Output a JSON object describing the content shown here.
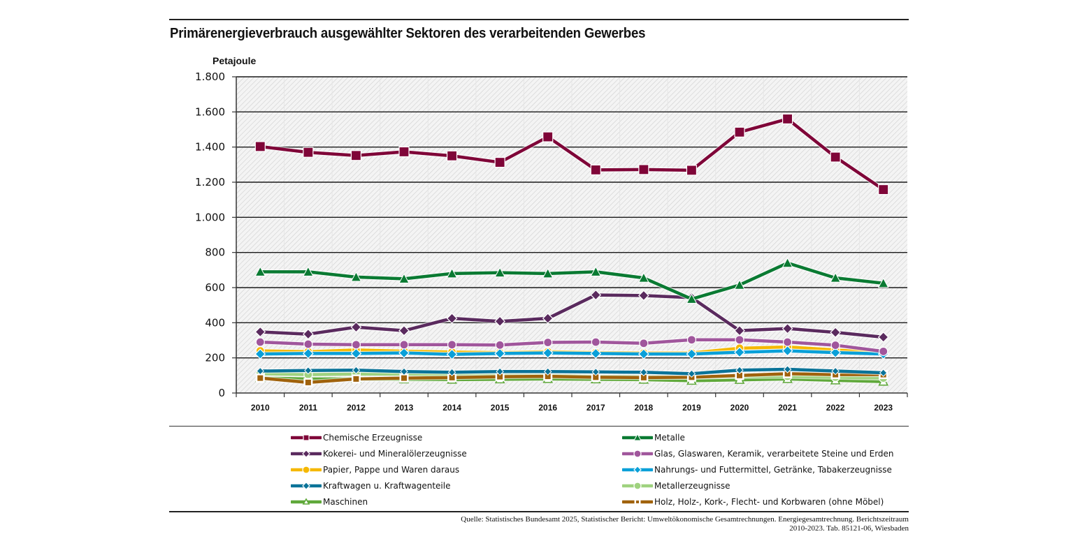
{
  "title": "Primärenergieverbrauch ausgewählter Sektoren des verarbeitenden Gewerbes",
  "source_line1": "Quelle: Statistisches Bundesamt 2025, Statistischer Bericht: Umweltökonomische Gesamtrechnungen. Energiegesamtrechnung. Berichtszeitraum",
  "source_line2": "2010-2023. Tab. 85121-06, Wiesbaden",
  "chart_data": {
    "type": "line",
    "title": "Primärenergieverbrauch ausgewählter Sektoren des verarbeitenden Gewerbes",
    "ylabel": "Petajoule",
    "xlabel": "",
    "ylim": [
      0,
      1800
    ],
    "yticks": [
      0,
      200,
      400,
      600,
      800,
      1000,
      1200,
      1400,
      1600,
      1800
    ],
    "ytick_labels": [
      "0",
      "200",
      "400",
      "600",
      "800",
      "1.000",
      "1.200",
      "1.400",
      "1.600",
      "1.800"
    ],
    "grid": true,
    "legend_position": "bottom",
    "x": [
      "2010",
      "2011",
      "2012",
      "2013",
      "2014",
      "2015",
      "2016",
      "2017",
      "2018",
      "2019",
      "2020",
      "2021",
      "2022",
      "2023"
    ],
    "series": [
      {
        "name": "Maschinen",
        "color": "#5fa83a",
        "marker": "triangle-open",
        "values": [
          85,
          80,
          80,
          78,
          76,
          78,
          80,
          78,
          76,
          70,
          75,
          80,
          72,
          65
        ]
      },
      {
        "name": "Metallerzeugnisse",
        "color": "#9fd27f",
        "marker": "circle",
        "values": [
          110,
          105,
          108,
          108,
          100,
          100,
          100,
          95,
          93,
          90,
          95,
          95,
          90,
          85
        ]
      },
      {
        "name": "Holz, Holz-, Kork-, Flecht- und Korbwaren (ohne Möbel)",
        "color": "#a0620c",
        "marker": "square-open",
        "values": [
          85,
          60,
          80,
          85,
          88,
          93,
          95,
          90,
          88,
          90,
          100,
          110,
          105,
          105
        ]
      },
      {
        "name": "Kraftwagen u. Kraftwagenteile",
        "color": "#0a7398",
        "marker": "diamond-small",
        "values": [
          125,
          128,
          130,
          122,
          118,
          122,
          122,
          120,
          118,
          110,
          130,
          135,
          125,
          115
        ]
      },
      {
        "name": "Papier, Pappe und Waren daraus",
        "color": "#f5b800",
        "marker": "circle",
        "values": [
          240,
          235,
          245,
          238,
          233,
          230,
          235,
          230,
          228,
          228,
          255,
          262,
          245,
          230
        ]
      },
      {
        "name": "Nahrungs- und Futtermittel, Getränke, Tabakerzeugnisse",
        "color": "#0aa0d8",
        "marker": "diamond",
        "values": [
          222,
          225,
          225,
          228,
          220,
          225,
          228,
          225,
          222,
          222,
          232,
          240,
          230,
          222
        ]
      },
      {
        "name": "Glas, Glaswaren, Keramik, verarbeitete Steine und Erden",
        "color": "#a0569c",
        "marker": "circle",
        "values": [
          290,
          278,
          275,
          275,
          275,
          273,
          288,
          290,
          283,
          303,
          303,
          290,
          272,
          237
        ]
      },
      {
        "name": "Kokerei- und Mineralölerzeugnisse",
        "color": "#5a2a5e",
        "marker": "diamond",
        "values": [
          348,
          335,
          375,
          355,
          425,
          408,
          425,
          558,
          555,
          543,
          355,
          367,
          345,
          318
        ]
      },
      {
        "name": "Metalle",
        "color": "#0a7a32",
        "marker": "triangle",
        "values": [
          690,
          690,
          660,
          650,
          680,
          685,
          680,
          690,
          655,
          535,
          615,
          740,
          655,
          625
        ]
      },
      {
        "name": "Chemische Erzeugnisse",
        "color": "#7f0538",
        "marker": "square",
        "values": [
          1403,
          1370,
          1352,
          1373,
          1350,
          1313,
          1458,
          1270,
          1272,
          1268,
          1485,
          1560,
          1343,
          1158
        ]
      }
    ]
  },
  "legend": {
    "left": [
      {
        "label": "Chemische Erzeugnisse",
        "color": "#7f0538",
        "marker": "square"
      },
      {
        "label": "Kokerei- und Mineralölerzeugnisse",
        "color": "#5a2a5e",
        "marker": "diamond"
      },
      {
        "label": "Papier, Pappe und Waren daraus",
        "color": "#f5b800",
        "marker": "circle"
      },
      {
        "label": "Kraftwagen u. Kraftwagenteile",
        "color": "#0a7398",
        "marker": "diamond"
      },
      {
        "label": "Maschinen",
        "color": "#5fa83a",
        "marker": "triangle-open"
      }
    ],
    "right": [
      {
        "label": "Metalle",
        "color": "#0a7a32",
        "marker": "triangle"
      },
      {
        "label": "Glas, Glaswaren, Keramik, verarbeitete Steine und Erden",
        "color": "#a0569c",
        "marker": "circle"
      },
      {
        "label": "Nahrungs- und Futtermittel, Getränke, Tabakerzeugnisse",
        "color": "#0aa0d8",
        "marker": "diamond"
      },
      {
        "label": "Metallerzeugnisse",
        "color": "#9fd27f",
        "marker": "circle"
      },
      {
        "label": "Holz, Holz-, Kork-, Flecht- und Korbwaren (ohne Möbel)",
        "color": "#a0620c",
        "marker": "square-open"
      }
    ]
  }
}
